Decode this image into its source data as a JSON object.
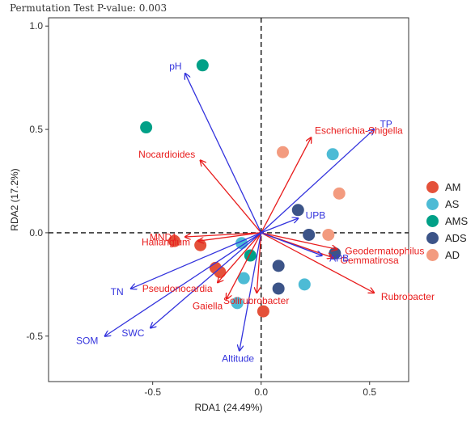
{
  "chart_data": {
    "type": "scatter",
    "subtitle": "Permutation Test P-value: 0.003",
    "xlabel": "RDA1 (24.49%)",
    "ylabel": "RDA2 (17.2%)",
    "xlim": [
      -0.98,
      0.68
    ],
    "ylim": [
      -0.72,
      1.04
    ],
    "xticks": [
      -0.5,
      0.0,
      0.5
    ],
    "yticks": [
      -0.5,
      0.0,
      0.5,
      1.0
    ],
    "grid": false,
    "legend_position": "right",
    "groups": [
      {
        "name": "AM",
        "color": "#E4513A",
        "points": [
          [
            -0.4,
            -0.04
          ],
          [
            -0.28,
            -0.06
          ],
          [
            -0.21,
            -0.17
          ],
          [
            -0.19,
            -0.19
          ],
          [
            0.01,
            -0.38
          ]
        ]
      },
      {
        "name": "AS",
        "color": "#4DBBD5",
        "points": [
          [
            0.33,
            0.38
          ],
          [
            -0.09,
            -0.05
          ],
          [
            -0.08,
            -0.22
          ],
          [
            -0.11,
            -0.34
          ],
          [
            0.2,
            -0.25
          ]
        ]
      },
      {
        "name": "AMS",
        "color": "#00A087",
        "points": [
          [
            -0.27,
            0.81
          ],
          [
            -0.53,
            0.51
          ],
          [
            -0.05,
            -0.11
          ]
        ]
      },
      {
        "name": "ADS",
        "color": "#3C5488",
        "points": [
          [
            0.17,
            0.11
          ],
          [
            0.22,
            -0.01
          ],
          [
            0.34,
            -0.1
          ],
          [
            0.08,
            -0.16
          ],
          [
            0.08,
            -0.27
          ]
        ]
      },
      {
        "name": "AD",
        "color": "#F39B7F",
        "points": [
          [
            0.1,
            0.39
          ],
          [
            0.36,
            0.19
          ],
          [
            0.31,
            -0.01
          ]
        ]
      }
    ],
    "env_arrows": [
      {
        "label": "pH",
        "end": [
          -0.35,
          0.77
        ]
      },
      {
        "label": "TP",
        "end": [
          0.52,
          0.5
        ]
      },
      {
        "label": "UPB",
        "end": [
          0.17,
          0.07
        ]
      },
      {
        "label": "APB",
        "end": [
          0.28,
          -0.11
        ]
      },
      {
        "label": "TN",
        "end": [
          -0.6,
          -0.27
        ]
      },
      {
        "label": "SOM",
        "end": [
          -0.72,
          -0.5
        ]
      },
      {
        "label": "SWC",
        "end": [
          -0.51,
          -0.46
        ]
      },
      {
        "label": "Altitude",
        "end": [
          -0.1,
          -0.57
        ]
      }
    ],
    "taxa_arrows": [
      {
        "label": "Escherichia-Shigella",
        "end": [
          0.23,
          0.46
        ]
      },
      {
        "label": "Nocardioides",
        "end": [
          -0.28,
          0.35
        ]
      },
      {
        "label": "MND1",
        "end": [
          -0.35,
          -0.02
        ]
      },
      {
        "label": "Haliangium",
        "end": [
          -0.29,
          -0.04
        ]
      },
      {
        "label": "Pseudonocardia",
        "end": [
          -0.2,
          -0.24
        ]
      },
      {
        "label": "Gaiella",
        "end": [
          -0.16,
          -0.32
        ]
      },
      {
        "label": "Solirubrobacter",
        "end": [
          -0.02,
          -0.29
        ]
      },
      {
        "label": "Geodermatophilus",
        "end": [
          0.35,
          -0.08
        ]
      },
      {
        "label": "Gemmatirosa",
        "end": [
          0.33,
          -0.12
        ]
      },
      {
        "label": "Rubrobacter",
        "end": [
          0.52,
          -0.29
        ]
      }
    ],
    "env_color": "#3333DD",
    "taxa_color": "#E81C1C"
  }
}
